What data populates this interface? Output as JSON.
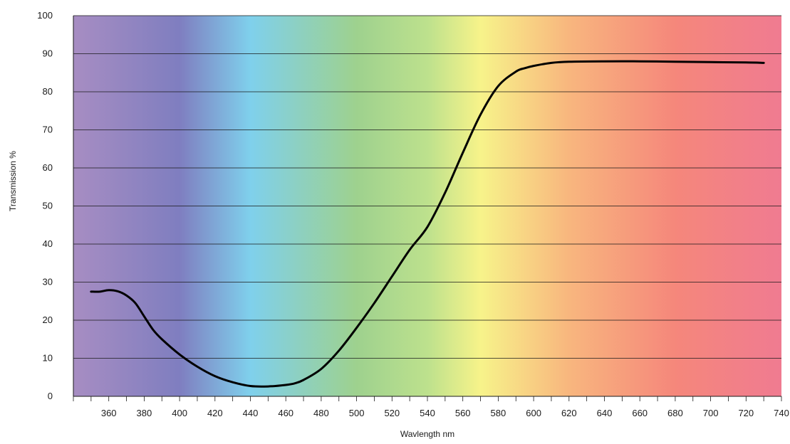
{
  "chart_data": {
    "type": "line",
    "title": "",
    "xlabel": "Wavlength nm",
    "ylabel": "Transmission %",
    "xlim": [
      340,
      740
    ],
    "ylim": [
      0,
      100
    ],
    "x_ticks": [
      360,
      380,
      400,
      420,
      440,
      460,
      480,
      500,
      520,
      540,
      560,
      580,
      600,
      620,
      640,
      660,
      680,
      700,
      720,
      740
    ],
    "y_ticks": [
      0,
      10,
      20,
      30,
      40,
      50,
      60,
      70,
      80,
      90,
      100
    ],
    "grid": "horizontal",
    "background": "visible spectrum gradient",
    "spectrum_colors": [
      {
        "wavelength": 340,
        "color": "#a78dc2"
      },
      {
        "wavelength": 400,
        "color": "#7f7ec0"
      },
      {
        "wavelength": 440,
        "color": "#7fd0ec"
      },
      {
        "wavelength": 500,
        "color": "#9ed18e"
      },
      {
        "wavelength": 540,
        "color": "#bde18d"
      },
      {
        "wavelength": 570,
        "color": "#f7f38a"
      },
      {
        "wavelength": 620,
        "color": "#f8b67e"
      },
      {
        "wavelength": 680,
        "color": "#f5877b"
      },
      {
        "wavelength": 740,
        "color": "#f07b91"
      }
    ],
    "line_color": "#000000",
    "series": [
      {
        "x": [
          350,
          355,
          360,
          365,
          370,
          375,
          380,
          385,
          390,
          400,
          410,
          420,
          430,
          440,
          450,
          460,
          465,
          470,
          480,
          490,
          500,
          510,
          520,
          530,
          540,
          550,
          560,
          570,
          580,
          590,
          595,
          600,
          610,
          620,
          640,
          660,
          680,
          700,
          720,
          730
        ],
        "y": [
          27.5,
          27.5,
          27.9,
          27.6,
          26.5,
          24.5,
          21,
          17.5,
          15,
          11,
          7.8,
          5.3,
          3.7,
          2.7,
          2.6,
          3.0,
          3.4,
          4.3,
          7.2,
          12,
          18,
          24.5,
          31.5,
          38.5,
          44.5,
          53.5,
          64,
          74,
          81.5,
          85.3,
          86.2,
          86.8,
          87.6,
          87.9,
          88.0,
          88.0,
          87.9,
          87.8,
          87.7,
          87.6
        ]
      }
    ]
  }
}
